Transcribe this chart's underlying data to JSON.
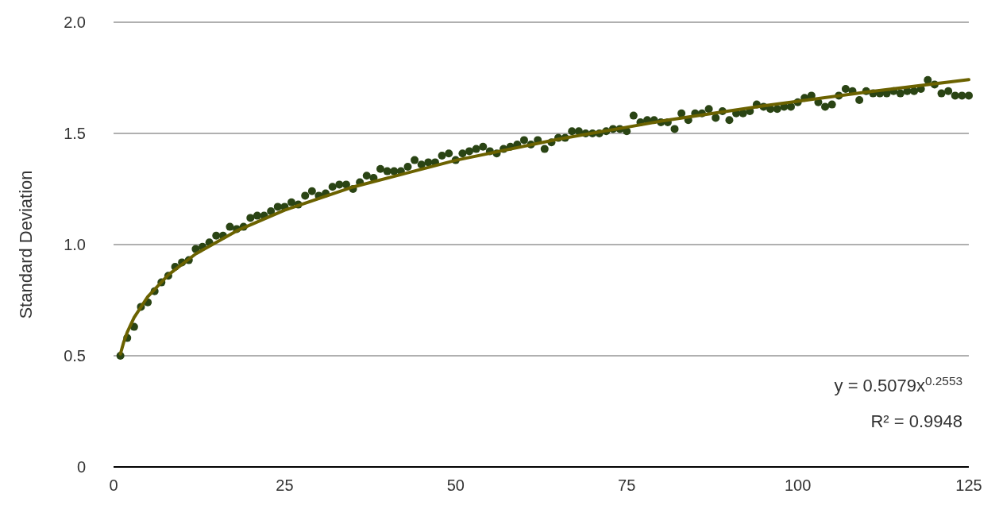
{
  "chart_data": {
    "type": "scatter",
    "ylabel": "Standard Deviation",
    "xlim": [
      0,
      125
    ],
    "xticks": [
      0,
      25,
      50,
      75,
      100,
      125
    ],
    "ylim": [
      0,
      2
    ],
    "yticks": [
      0,
      0.5,
      {
        "value": 1,
        "label": "1.0"
      },
      1.5,
      {
        "value": 2,
        "label": "2.0"
      }
    ],
    "grid": "y",
    "marker": "circle",
    "annotations": [
      "y = 0.5079x$^{0.2553}$",
      "R² = 0.9948"
    ],
    "series": [
      {
        "type": "line",
        "marker": "none",
        "color": "#6b6200",
        "x": [
          1,
          1.5,
          2,
          3,
          5,
          8,
          12,
          18,
          25,
          35,
          50,
          65,
          80,
          95,
          110,
          125
        ],
        "values": [
          0.508,
          0.563,
          0.606,
          0.672,
          0.766,
          0.864,
          0.958,
          1.062,
          1.155,
          1.259,
          1.379,
          1.474,
          1.555,
          1.624,
          1.686,
          1.742
        ]
      },
      {
        "color": "#2a4414",
        "x": [
          1,
          2,
          3,
          4,
          5,
          6,
          7,
          8,
          9,
          10,
          11,
          12,
          13,
          14,
          15,
          16,
          17,
          18,
          19,
          20,
          21,
          22,
          23,
          24,
          25,
          26,
          27,
          28,
          29,
          30,
          31,
          32,
          33,
          34,
          35,
          36,
          37,
          38,
          39,
          40,
          41,
          42,
          43,
          44,
          45,
          46,
          47,
          48,
          49,
          50,
          51,
          52,
          53,
          54,
          55,
          56,
          57,
          58,
          59,
          60,
          61,
          62,
          63,
          64,
          65,
          66,
          67,
          68,
          69,
          70,
          71,
          72,
          73,
          74,
          75,
          76,
          77,
          78,
          79,
          80,
          81,
          82,
          83,
          84,
          85,
          86,
          87,
          88,
          89,
          90,
          91,
          92,
          93,
          94,
          95,
          96,
          97,
          98,
          99,
          100,
          101,
          102,
          103,
          104,
          105,
          106,
          107,
          108,
          109,
          110,
          111,
          112,
          113,
          114,
          115,
          116,
          117,
          118,
          119,
          120,
          121,
          122,
          123,
          124,
          125
        ],
        "values": [
          0.5,
          0.58,
          0.63,
          0.72,
          0.74,
          0.79,
          0.83,
          0.86,
          0.9,
          0.92,
          0.93,
          0.98,
          0.99,
          1.01,
          1.04,
          1.04,
          1.08,
          1.07,
          1.08,
          1.12,
          1.13,
          1.13,
          1.15,
          1.17,
          1.17,
          1.19,
          1.18,
          1.22,
          1.24,
          1.22,
          1.23,
          1.26,
          1.27,
          1.27,
          1.25,
          1.28,
          1.31,
          1.3,
          1.34,
          1.33,
          1.33,
          1.33,
          1.35,
          1.38,
          1.36,
          1.37,
          1.37,
          1.4,
          1.41,
          1.38,
          1.41,
          1.42,
          1.43,
          1.44,
          1.42,
          1.41,
          1.43,
          1.44,
          1.45,
          1.47,
          1.45,
          1.47,
          1.43,
          1.46,
          1.48,
          1.48,
          1.51,
          1.51,
          1.5,
          1.5,
          1.5,
          1.51,
          1.52,
          1.52,
          1.51,
          1.58,
          1.55,
          1.56,
          1.56,
          1.55,
          1.55,
          1.52,
          1.59,
          1.56,
          1.59,
          1.59,
          1.61,
          1.57,
          1.6,
          1.56,
          1.59,
          1.59,
          1.6,
          1.63,
          1.62,
          1.61,
          1.61,
          1.62,
          1.62,
          1.64,
          1.66,
          1.67,
          1.64,
          1.62,
          1.63,
          1.67,
          1.7,
          1.69,
          1.65,
          1.69,
          1.68,
          1.68,
          1.68,
          1.69,
          1.68,
          1.69,
          1.69,
          1.7,
          1.74,
          1.72,
          1.68,
          1.69,
          1.67,
          1.67,
          1.67
        ]
      }
    ]
  }
}
